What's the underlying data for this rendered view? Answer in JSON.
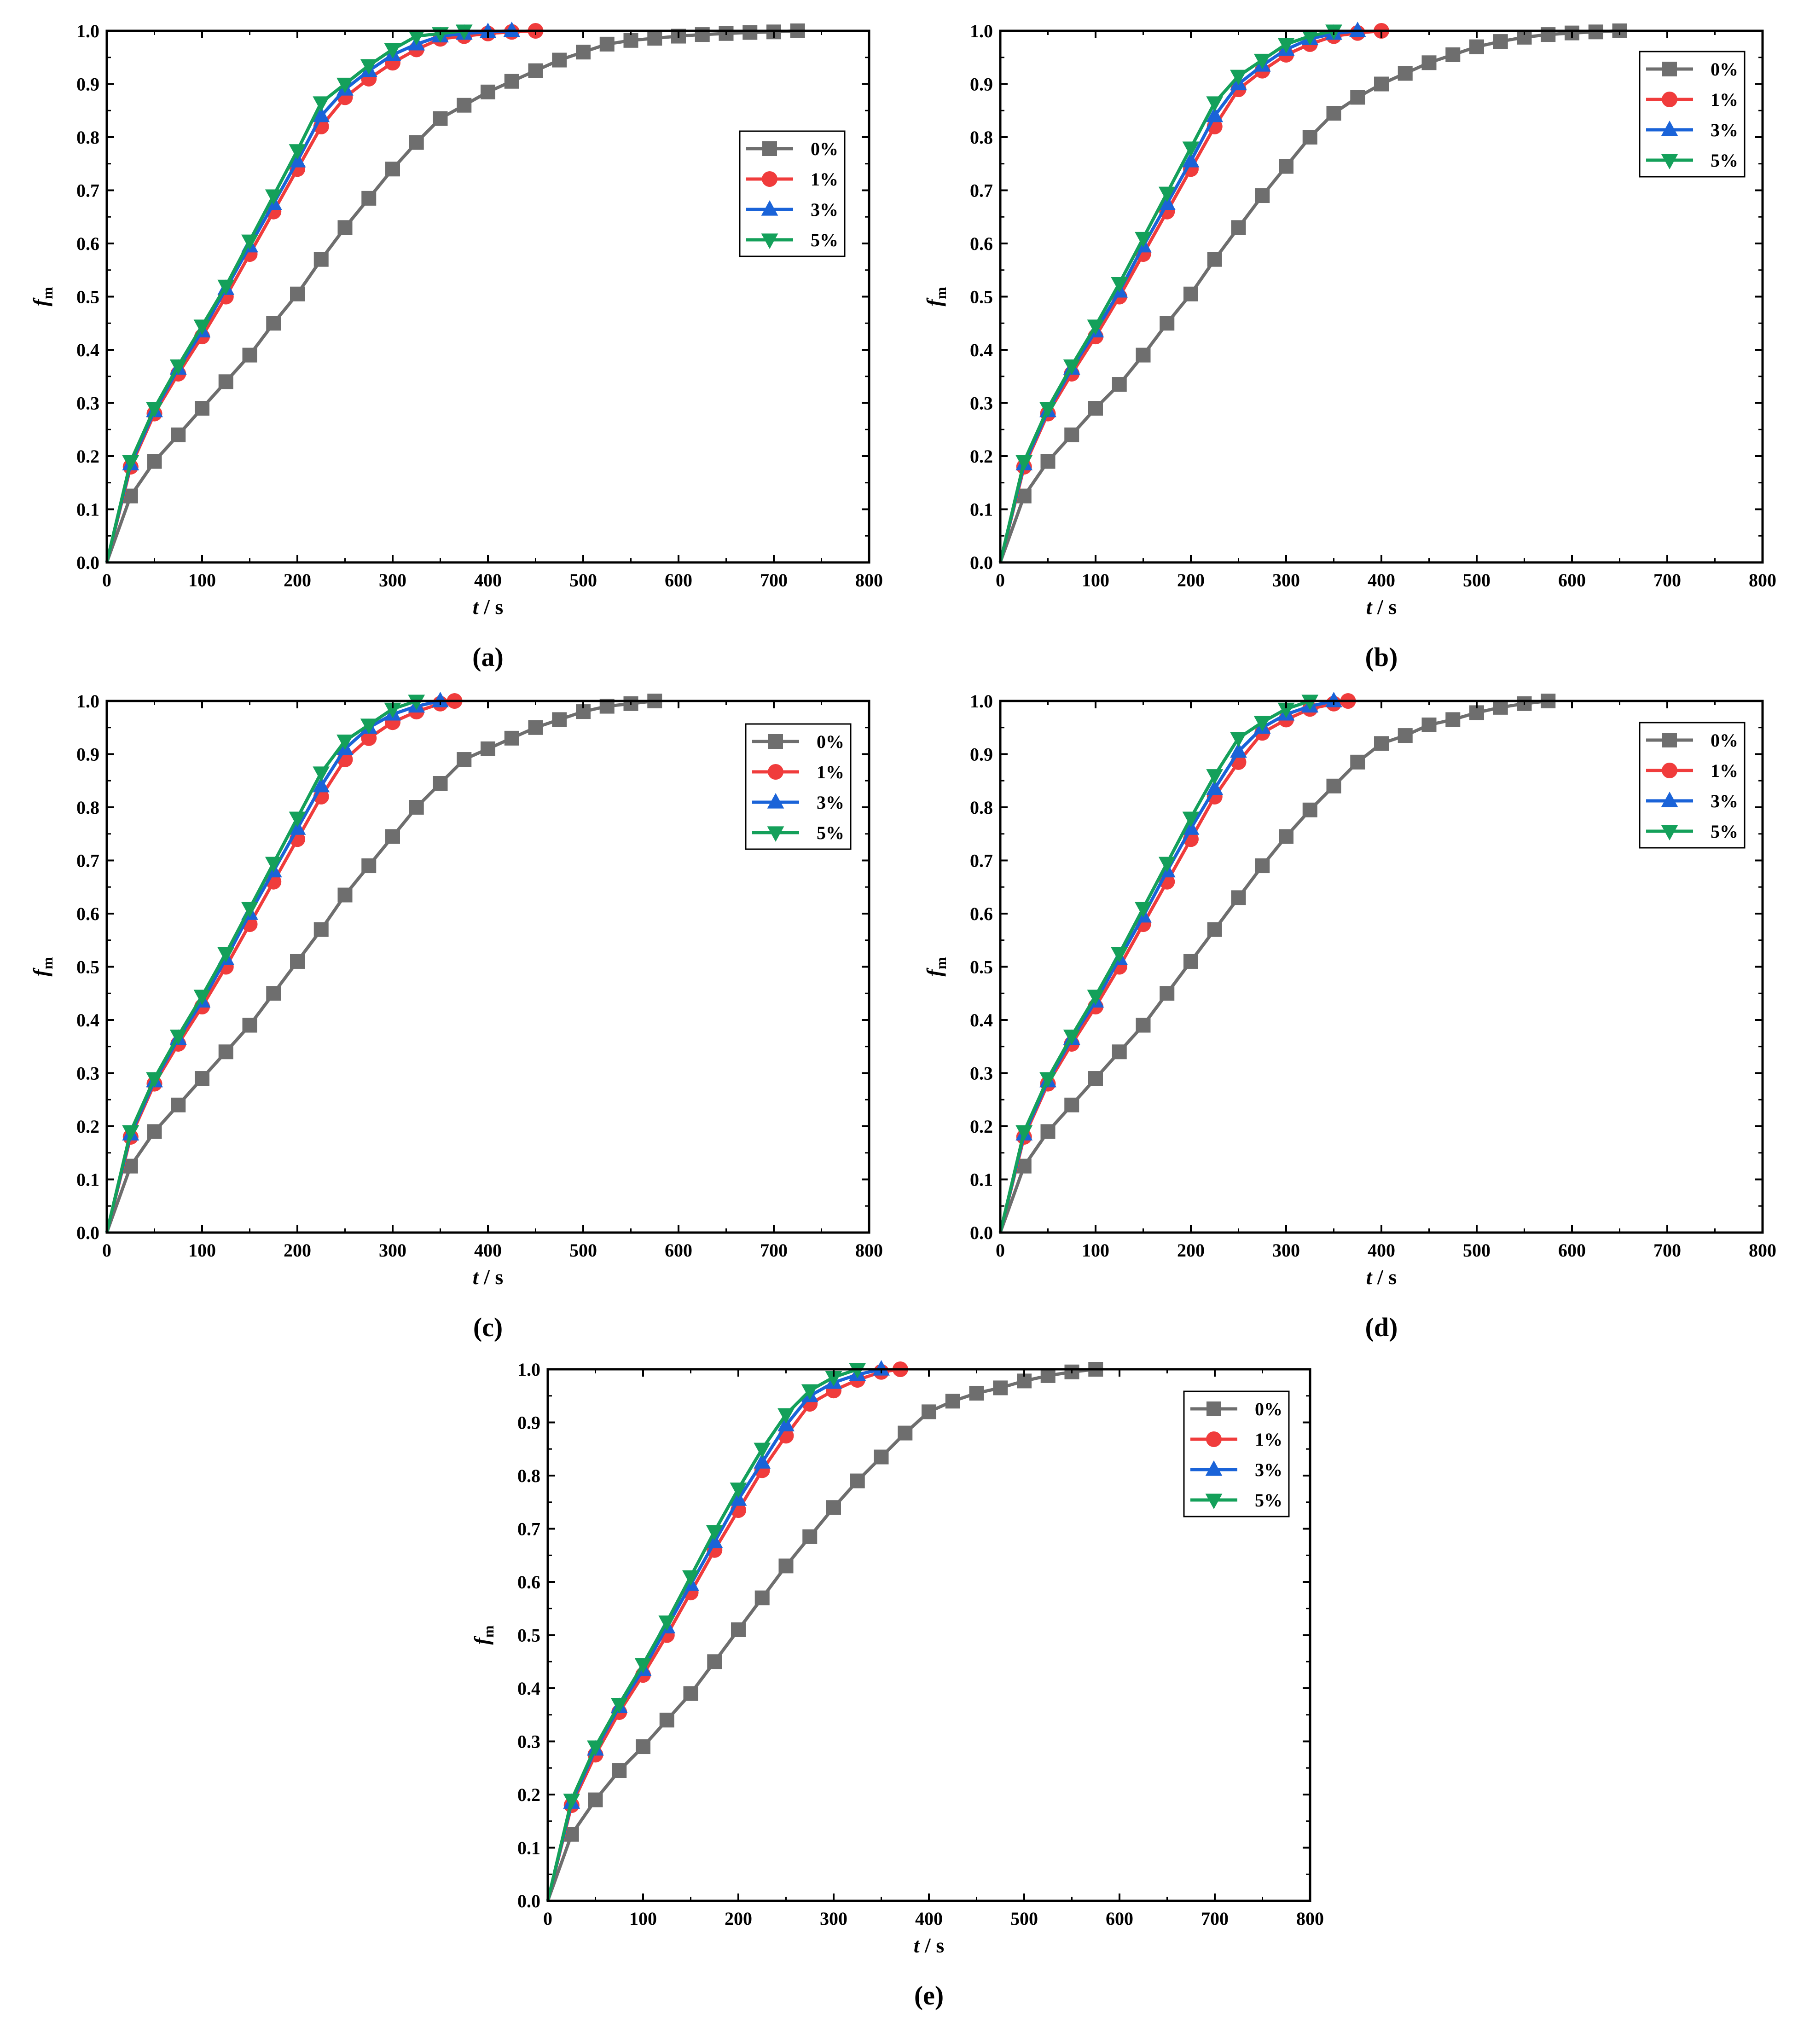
{
  "series_colors": {
    "0%": "#6e6e6e",
    "1%": "#f03c3c",
    "3%": "#1a63d8",
    "5%": "#14a05a"
  },
  "chart_data": [
    {
      "panel": "(a)",
      "type": "line",
      "xlabel_italic": "t",
      "xlabel_unit": " / s",
      "ylabel_base": "f",
      "ylabel_sub": "m",
      "xlim": [
        0,
        800
      ],
      "ylim": [
        0,
        1.0
      ],
      "xticks": [
        "0",
        "100",
        "200",
        "300",
        "400",
        "500",
        "600",
        "700",
        "800"
      ],
      "yticks": [
        "0.0",
        "0.1",
        "0.2",
        "0.3",
        "0.4",
        "0.5",
        "0.6",
        "0.7",
        "0.8",
        "0.9",
        "1.0"
      ],
      "legend": [
        "0%",
        "1%",
        "3%",
        "5%"
      ],
      "series": [
        {
          "name": "0%",
          "marker": "square",
          "x": [
            0,
            25,
            50,
            75,
            100,
            125,
            150,
            175,
            200,
            225,
            250,
            275,
            300,
            325,
            350,
            375,
            400,
            425,
            450,
            475,
            500,
            525,
            550,
            575,
            600,
            625,
            650,
            675,
            700,
            725
          ],
          "y": [
            0,
            0.125,
            0.19,
            0.24,
            0.29,
            0.34,
            0.39,
            0.45,
            0.505,
            0.57,
            0.63,
            0.685,
            0.74,
            0.79,
            0.835,
            0.86,
            0.885,
            0.905,
            0.925,
            0.945,
            0.96,
            0.975,
            0.982,
            0.986,
            0.99,
            0.993,
            0.995,
            0.997,
            0.998,
            1.0
          ]
        },
        {
          "name": "1%",
          "marker": "circle",
          "x": [
            0,
            25,
            50,
            75,
            100,
            125,
            150,
            175,
            200,
            225,
            250,
            275,
            300,
            325,
            350,
            375,
            400,
            425,
            450
          ],
          "y": [
            0,
            0.18,
            0.28,
            0.355,
            0.425,
            0.5,
            0.58,
            0.66,
            0.74,
            0.82,
            0.875,
            0.91,
            0.94,
            0.965,
            0.985,
            0.99,
            0.995,
            0.998,
            1.0
          ]
        },
        {
          "name": "3%",
          "marker": "triangle-up",
          "x": [
            0,
            25,
            50,
            75,
            100,
            125,
            150,
            175,
            200,
            225,
            250,
            275,
            300,
            325,
            350,
            375,
            400,
            425
          ],
          "y": [
            0,
            0.185,
            0.285,
            0.365,
            0.435,
            0.515,
            0.595,
            0.675,
            0.755,
            0.84,
            0.89,
            0.925,
            0.955,
            0.975,
            0.99,
            0.995,
            0.998,
            1.0
          ]
        },
        {
          "name": "5%",
          "marker": "triangle-down",
          "x": [
            0,
            25,
            50,
            75,
            100,
            125,
            150,
            175,
            200,
            225,
            250,
            275,
            300,
            325,
            350,
            375
          ],
          "y": [
            0,
            0.19,
            0.29,
            0.37,
            0.445,
            0.52,
            0.605,
            0.69,
            0.775,
            0.865,
            0.9,
            0.935,
            0.965,
            0.99,
            0.995,
            1.0
          ]
        }
      ]
    },
    {
      "panel": "(b)",
      "type": "line",
      "xlabel_italic": "t",
      "xlabel_unit": " / s",
      "ylabel_base": "f",
      "ylabel_sub": "m",
      "xlim": [
        0,
        800
      ],
      "ylim": [
        0,
        1.0
      ],
      "xticks": [
        "0",
        "100",
        "200",
        "300",
        "400",
        "500",
        "600",
        "700",
        "800"
      ],
      "yticks": [
        "0.0",
        "0.1",
        "0.2",
        "0.3",
        "0.4",
        "0.5",
        "0.6",
        "0.7",
        "0.8",
        "0.9",
        "1.0"
      ],
      "legend": [
        "0%",
        "1%",
        "3%",
        "5%"
      ],
      "series": [
        {
          "name": "0%",
          "marker": "square",
          "x": [
            0,
            25,
            50,
            75,
            100,
            125,
            150,
            175,
            200,
            225,
            250,
            275,
            300,
            325,
            350,
            375,
            400,
            425,
            450,
            475,
            500,
            525,
            550,
            575,
            600,
            625,
            650
          ],
          "y": [
            0,
            0.125,
            0.19,
            0.24,
            0.29,
            0.335,
            0.39,
            0.45,
            0.505,
            0.57,
            0.63,
            0.69,
            0.745,
            0.8,
            0.845,
            0.875,
            0.9,
            0.92,
            0.94,
            0.955,
            0.97,
            0.98,
            0.988,
            0.993,
            0.996,
            0.998,
            1.0
          ]
        },
        {
          "name": "1%",
          "marker": "circle",
          "x": [
            0,
            25,
            50,
            75,
            100,
            125,
            150,
            175,
            200,
            225,
            250,
            275,
            300,
            325,
            350,
            375,
            400
          ],
          "y": [
            0,
            0.18,
            0.28,
            0.355,
            0.425,
            0.5,
            0.58,
            0.66,
            0.74,
            0.82,
            0.89,
            0.925,
            0.955,
            0.975,
            0.99,
            0.996,
            1.0
          ]
        },
        {
          "name": "3%",
          "marker": "triangle-up",
          "x": [
            0,
            25,
            50,
            75,
            100,
            125,
            150,
            175,
            200,
            225,
            250,
            275,
            300,
            325,
            350,
            375
          ],
          "y": [
            0,
            0.185,
            0.285,
            0.365,
            0.435,
            0.51,
            0.595,
            0.675,
            0.755,
            0.84,
            0.9,
            0.935,
            0.965,
            0.985,
            0.995,
            1.0
          ]
        },
        {
          "name": "5%",
          "marker": "triangle-down",
          "x": [
            0,
            25,
            50,
            75,
            100,
            125,
            150,
            175,
            200,
            225,
            250,
            275,
            300,
            325,
            350
          ],
          "y": [
            0,
            0.19,
            0.29,
            0.37,
            0.445,
            0.525,
            0.61,
            0.695,
            0.78,
            0.865,
            0.915,
            0.945,
            0.975,
            0.99,
            1.0
          ]
        }
      ]
    },
    {
      "panel": "(c)",
      "type": "line",
      "xlabel_italic": "t",
      "xlabel_unit": " / s",
      "ylabel_base": "f",
      "ylabel_sub": "m",
      "xlim": [
        0,
        800
      ],
      "ylim": [
        0,
        1.0
      ],
      "xticks": [
        "0",
        "100",
        "200",
        "300",
        "400",
        "500",
        "600",
        "700",
        "800"
      ],
      "yticks": [
        "0.0",
        "0.1",
        "0.2",
        "0.3",
        "0.4",
        "0.5",
        "0.6",
        "0.7",
        "0.8",
        "0.9",
        "1.0"
      ],
      "legend": [
        "0%",
        "1%",
        "3%",
        "5%"
      ],
      "series": [
        {
          "name": "0%",
          "marker": "square",
          "x": [
            0,
            25,
            50,
            75,
            100,
            125,
            150,
            175,
            200,
            225,
            250,
            275,
            300,
            325,
            350,
            375,
            400,
            425,
            450,
            475,
            500,
            525,
            550,
            575
          ],
          "y": [
            0,
            0.125,
            0.19,
            0.24,
            0.29,
            0.34,
            0.39,
            0.45,
            0.51,
            0.57,
            0.635,
            0.69,
            0.745,
            0.8,
            0.845,
            0.89,
            0.91,
            0.93,
            0.95,
            0.965,
            0.98,
            0.99,
            0.995,
            1.0
          ]
        },
        {
          "name": "1%",
          "marker": "circle",
          "x": [
            0,
            25,
            50,
            75,
            100,
            125,
            150,
            175,
            200,
            225,
            250,
            275,
            300,
            325,
            350,
            365
          ],
          "y": [
            0,
            0.18,
            0.28,
            0.355,
            0.425,
            0.5,
            0.58,
            0.66,
            0.74,
            0.82,
            0.89,
            0.93,
            0.96,
            0.98,
            0.995,
            1.0
          ]
        },
        {
          "name": "3%",
          "marker": "triangle-up",
          "x": [
            0,
            25,
            50,
            75,
            100,
            125,
            150,
            175,
            200,
            225,
            250,
            275,
            300,
            325,
            350
          ],
          "y": [
            0,
            0.185,
            0.285,
            0.365,
            0.435,
            0.515,
            0.6,
            0.68,
            0.76,
            0.84,
            0.91,
            0.95,
            0.975,
            0.99,
            1.0
          ]
        },
        {
          "name": "5%",
          "marker": "triangle-down",
          "x": [
            0,
            25,
            50,
            75,
            100,
            125,
            150,
            175,
            200,
            225,
            250,
            275,
            300,
            325
          ],
          "y": [
            0,
            0.19,
            0.29,
            0.37,
            0.445,
            0.525,
            0.61,
            0.695,
            0.78,
            0.865,
            0.925,
            0.955,
            0.985,
            1.0
          ]
        }
      ]
    },
    {
      "panel": "(d)",
      "type": "line",
      "xlabel_italic": "t",
      "xlabel_unit": " / s",
      "ylabel_base": "f",
      "ylabel_sub": "m",
      "xlim": [
        0,
        800
      ],
      "ylim": [
        0,
        1.0
      ],
      "xticks": [
        "0",
        "100",
        "200",
        "300",
        "400",
        "500",
        "600",
        "700",
        "800"
      ],
      "yticks": [
        "0.0",
        "0.1",
        "0.2",
        "0.3",
        "0.4",
        "0.5",
        "0.6",
        "0.7",
        "0.8",
        "0.9",
        "1.0"
      ],
      "legend": [
        "0%",
        "1%",
        "3%",
        "5%"
      ],
      "series": [
        {
          "name": "0%",
          "marker": "square",
          "x": [
            0,
            25,
            50,
            75,
            100,
            125,
            150,
            175,
            200,
            225,
            250,
            275,
            300,
            325,
            350,
            375,
            400,
            425,
            450,
            475,
            500,
            525,
            550,
            575
          ],
          "y": [
            0,
            0.125,
            0.19,
            0.24,
            0.29,
            0.34,
            0.39,
            0.45,
            0.51,
            0.57,
            0.63,
            0.69,
            0.745,
            0.795,
            0.84,
            0.885,
            0.92,
            0.935,
            0.955,
            0.965,
            0.978,
            0.988,
            0.995,
            1.0
          ]
        },
        {
          "name": "1%",
          "marker": "circle",
          "x": [
            0,
            25,
            50,
            75,
            100,
            125,
            150,
            175,
            200,
            225,
            250,
            275,
            300,
            325,
            350,
            365
          ],
          "y": [
            0,
            0.18,
            0.28,
            0.355,
            0.425,
            0.5,
            0.58,
            0.66,
            0.74,
            0.82,
            0.885,
            0.94,
            0.965,
            0.985,
            0.995,
            1.0
          ]
        },
        {
          "name": "3%",
          "marker": "triangle-up",
          "x": [
            0,
            25,
            50,
            75,
            100,
            125,
            150,
            175,
            200,
            225,
            250,
            275,
            300,
            325,
            350
          ],
          "y": [
            0,
            0.185,
            0.285,
            0.365,
            0.435,
            0.515,
            0.595,
            0.68,
            0.76,
            0.835,
            0.905,
            0.95,
            0.975,
            0.99,
            1.0
          ]
        },
        {
          "name": "5%",
          "marker": "triangle-down",
          "x": [
            0,
            25,
            50,
            75,
            100,
            125,
            150,
            175,
            200,
            225,
            250,
            275,
            300,
            325
          ],
          "y": [
            0,
            0.19,
            0.29,
            0.37,
            0.445,
            0.525,
            0.61,
            0.695,
            0.78,
            0.86,
            0.93,
            0.96,
            0.985,
            1.0
          ]
        }
      ]
    },
    {
      "panel": "(e)",
      "type": "line",
      "xlabel_italic": "t",
      "xlabel_unit": " / s",
      "ylabel_base": "f",
      "ylabel_sub": "m",
      "xlim": [
        0,
        800
      ],
      "ylim": [
        0,
        1.0
      ],
      "xticks": [
        "0",
        "100",
        "200",
        "300",
        "400",
        "500",
        "600",
        "700",
        "800"
      ],
      "yticks": [
        "0.0",
        "0.1",
        "0.2",
        "0.3",
        "0.4",
        "0.5",
        "0.6",
        "0.7",
        "0.8",
        "0.9",
        "1.0"
      ],
      "legend": [
        "0%",
        "1%",
        "3%",
        "5%"
      ],
      "series": [
        {
          "name": "0%",
          "marker": "square",
          "x": [
            0,
            25,
            50,
            75,
            100,
            125,
            150,
            175,
            200,
            225,
            250,
            275,
            300,
            325,
            350,
            375,
            400,
            425,
            450,
            475,
            500,
            525,
            550,
            575
          ],
          "y": [
            0,
            0.125,
            0.19,
            0.245,
            0.29,
            0.34,
            0.39,
            0.45,
            0.51,
            0.57,
            0.63,
            0.685,
            0.74,
            0.79,
            0.835,
            0.88,
            0.92,
            0.94,
            0.955,
            0.965,
            0.978,
            0.988,
            0.995,
            1.0
          ]
        },
        {
          "name": "1%",
          "marker": "circle",
          "x": [
            0,
            25,
            50,
            75,
            100,
            125,
            150,
            175,
            200,
            225,
            250,
            275,
            300,
            325,
            350,
            370
          ],
          "y": [
            0,
            0.18,
            0.275,
            0.355,
            0.425,
            0.5,
            0.58,
            0.66,
            0.735,
            0.81,
            0.875,
            0.935,
            0.96,
            0.98,
            0.995,
            1.0
          ]
        },
        {
          "name": "3%",
          "marker": "triangle-up",
          "x": [
            0,
            25,
            50,
            75,
            100,
            125,
            150,
            175,
            200,
            225,
            250,
            275,
            300,
            325,
            350
          ],
          "y": [
            0,
            0.185,
            0.285,
            0.365,
            0.435,
            0.515,
            0.595,
            0.675,
            0.755,
            0.825,
            0.895,
            0.95,
            0.975,
            0.99,
            1.0
          ]
        },
        {
          "name": "5%",
          "marker": "triangle-down",
          "x": [
            0,
            25,
            50,
            75,
            100,
            125,
            150,
            175,
            200,
            225,
            250,
            275,
            300,
            325
          ],
          "y": [
            0,
            0.19,
            0.29,
            0.37,
            0.445,
            0.525,
            0.61,
            0.695,
            0.775,
            0.85,
            0.915,
            0.96,
            0.985,
            1.0
          ]
        }
      ]
    }
  ]
}
